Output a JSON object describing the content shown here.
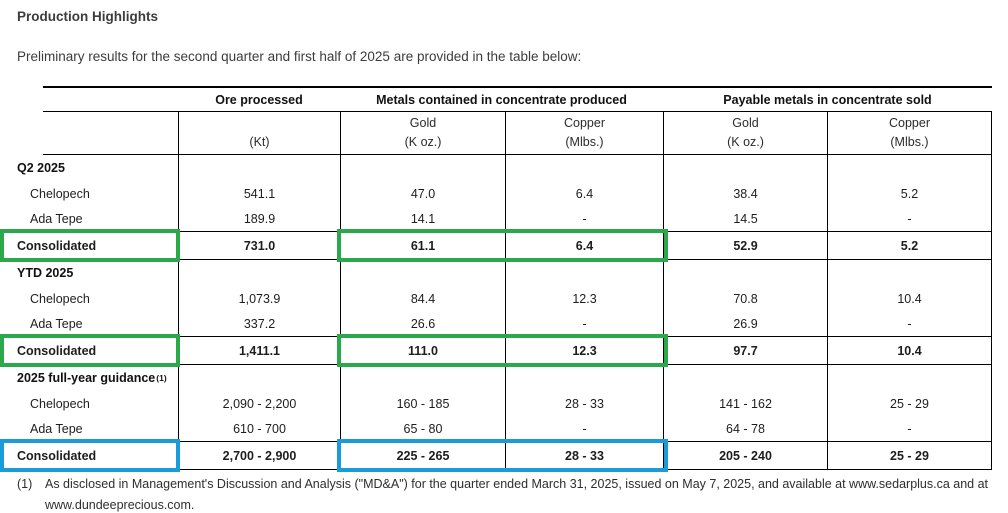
{
  "page": {
    "title": "Production Highlights",
    "intro": "Preliminary results for the second quarter and first half of 2025 are provided in the table below:"
  },
  "colors": {
    "highlight_green": "#2aa84b",
    "highlight_blue": "#1a9cd8"
  },
  "table": {
    "column_groups": [
      {
        "label": "Ore processed"
      },
      {
        "label": "Metals contained in concentrate produced"
      },
      {
        "label": "Payable metals in concentrate sold"
      }
    ],
    "sub_headers": [
      {
        "line1": "",
        "line2": "(Kt)"
      },
      {
        "line1": "Gold",
        "line2": "(K oz.)"
      },
      {
        "line1": "Copper",
        "line2": "(Mlbs.)"
      },
      {
        "line1": "Gold",
        "line2": "(K oz.)"
      },
      {
        "line1": "Copper",
        "line2": "(Mlbs.)"
      }
    ],
    "sections": [
      {
        "header": "Q2 2025",
        "header_sup": "",
        "rows": [
          {
            "label": "Chelopech",
            "indent": true,
            "bold": false,
            "highlight": "",
            "values": [
              "541.1",
              "47.0",
              "6.4",
              "38.4",
              "5.2"
            ]
          },
          {
            "label": "Ada Tepe",
            "indent": true,
            "bold": false,
            "highlight": "",
            "values": [
              "189.9",
              "14.1",
              "-",
              "14.5",
              "-"
            ]
          },
          {
            "label": "Consolidated",
            "indent": false,
            "bold": true,
            "highlight": "green",
            "values": [
              "731.0",
              "61.1",
              "6.4",
              "52.9",
              "5.2"
            ]
          }
        ]
      },
      {
        "header": "YTD 2025",
        "header_sup": "",
        "rows": [
          {
            "label": "Chelopech",
            "indent": true,
            "bold": false,
            "highlight": "",
            "values": [
              "1,073.9",
              "84.4",
              "12.3",
              "70.8",
              "10.4"
            ]
          },
          {
            "label": "Ada Tepe",
            "indent": true,
            "bold": false,
            "highlight": "",
            "values": [
              "337.2",
              "26.6",
              "-",
              "26.9",
              "-"
            ]
          },
          {
            "label": "Consolidated",
            "indent": false,
            "bold": true,
            "highlight": "green",
            "values": [
              "1,411.1",
              "111.0",
              "12.3",
              "97.7",
              "10.4"
            ]
          }
        ]
      },
      {
        "header": "2025 full-year guidance",
        "header_sup": "(1)",
        "rows": [
          {
            "label": "Chelopech",
            "indent": true,
            "bold": false,
            "highlight": "",
            "values": [
              "2,090 - 2,200",
              "160 - 185",
              "28 - 33",
              "141 - 162",
              "25 - 29"
            ]
          },
          {
            "label": "Ada Tepe",
            "indent": true,
            "bold": false,
            "highlight": "",
            "values": [
              "610 - 700",
              "65 - 80",
              "-",
              "64 - 78",
              "-"
            ]
          },
          {
            "label": "Consolidated",
            "indent": false,
            "bold": true,
            "highlight": "blue",
            "values": [
              "2,700 - 2,900",
              "225 - 265",
              "28 - 33",
              "205 - 240",
              "25 - 29"
            ]
          }
        ]
      }
    ]
  },
  "footnote": {
    "marker": "(1)",
    "line1": "As disclosed in Management's Discussion and Analysis (\"MD&A\") for the quarter ended March 31, 2025, issued on May 7, 2025, and available at www.sedarplus.ca and at",
    "line2": "www.dundeeprecious.com."
  }
}
